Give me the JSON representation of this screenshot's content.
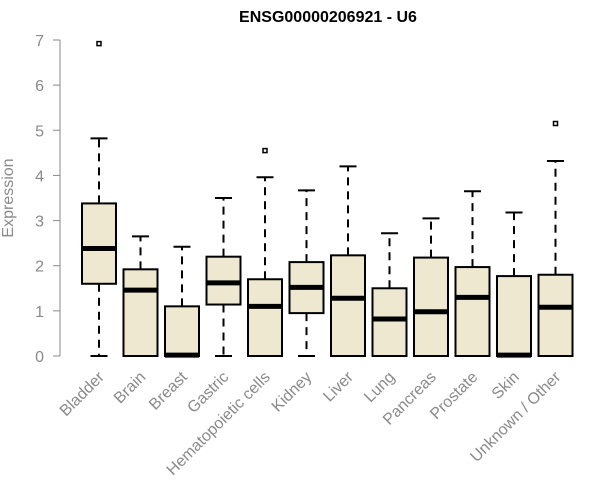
{
  "chart_data": {
    "type": "boxplot",
    "title": "ENSG00000206921 - U6",
    "xlabel": "",
    "ylabel": "Expression",
    "ylim": [
      0,
      7
    ],
    "yticks": [
      0,
      1,
      2,
      3,
      4,
      5,
      6,
      7
    ],
    "grid": false,
    "colors": {
      "box_fill": "#EEE8D0",
      "box_stroke": "#000000",
      "axis": "#8a8a8a"
    },
    "categories": [
      "Bladder",
      "Brain",
      "Breast",
      "Gastric",
      "Hematopoietic cells",
      "Kidney",
      "Liver",
      "Lung",
      "Pancreas",
      "Prostate",
      "Skin",
      "Unknown / Other"
    ],
    "boxes": [
      {
        "category": "Bladder",
        "whisker_low": 0,
        "q1": 1.6,
        "median": 2.38,
        "q3": 3.38,
        "whisker_high": 4.82,
        "outliers": [
          6.92
        ]
      },
      {
        "category": "Brain",
        "whisker_low": 0,
        "q1": 0,
        "median": 1.46,
        "q3": 1.92,
        "whisker_high": 2.65,
        "outliers": []
      },
      {
        "category": "Breast",
        "whisker_low": 0,
        "q1": 0,
        "median": 0.02,
        "q3": 1.1,
        "whisker_high": 2.42,
        "outliers": []
      },
      {
        "category": "Gastric",
        "whisker_low": 0,
        "q1": 1.14,
        "median": 1.62,
        "q3": 2.2,
        "whisker_high": 3.5,
        "outliers": []
      },
      {
        "category": "Hematopoietic cells",
        "whisker_low": 0,
        "q1": 0,
        "median": 1.1,
        "q3": 1.7,
        "whisker_high": 3.96,
        "outliers": [
          4.55
        ]
      },
      {
        "category": "Kidney",
        "whisker_low": 0,
        "q1": 0.95,
        "median": 1.52,
        "q3": 2.08,
        "whisker_high": 3.67,
        "outliers": []
      },
      {
        "category": "Liver",
        "whisker_low": 0,
        "q1": 0,
        "median": 1.28,
        "q3": 2.23,
        "whisker_high": 4.2,
        "outliers": []
      },
      {
        "category": "Lung",
        "whisker_low": 0,
        "q1": 0,
        "median": 0.82,
        "q3": 1.5,
        "whisker_high": 2.72,
        "outliers": []
      },
      {
        "category": "Pancreas",
        "whisker_low": 0,
        "q1": 0,
        "median": 0.98,
        "q3": 2.18,
        "whisker_high": 3.05,
        "outliers": []
      },
      {
        "category": "Prostate",
        "whisker_low": 0,
        "q1": 0,
        "median": 1.3,
        "q3": 1.97,
        "whisker_high": 3.65,
        "outliers": []
      },
      {
        "category": "Skin",
        "whisker_low": 0,
        "q1": 0,
        "median": 0.02,
        "q3": 1.77,
        "whisker_high": 3.18,
        "outliers": []
      },
      {
        "category": "Unknown / Other",
        "whisker_low": 0,
        "q1": 0,
        "median": 1.08,
        "q3": 1.8,
        "whisker_high": 4.32,
        "outliers": [
          5.15
        ]
      }
    ]
  }
}
